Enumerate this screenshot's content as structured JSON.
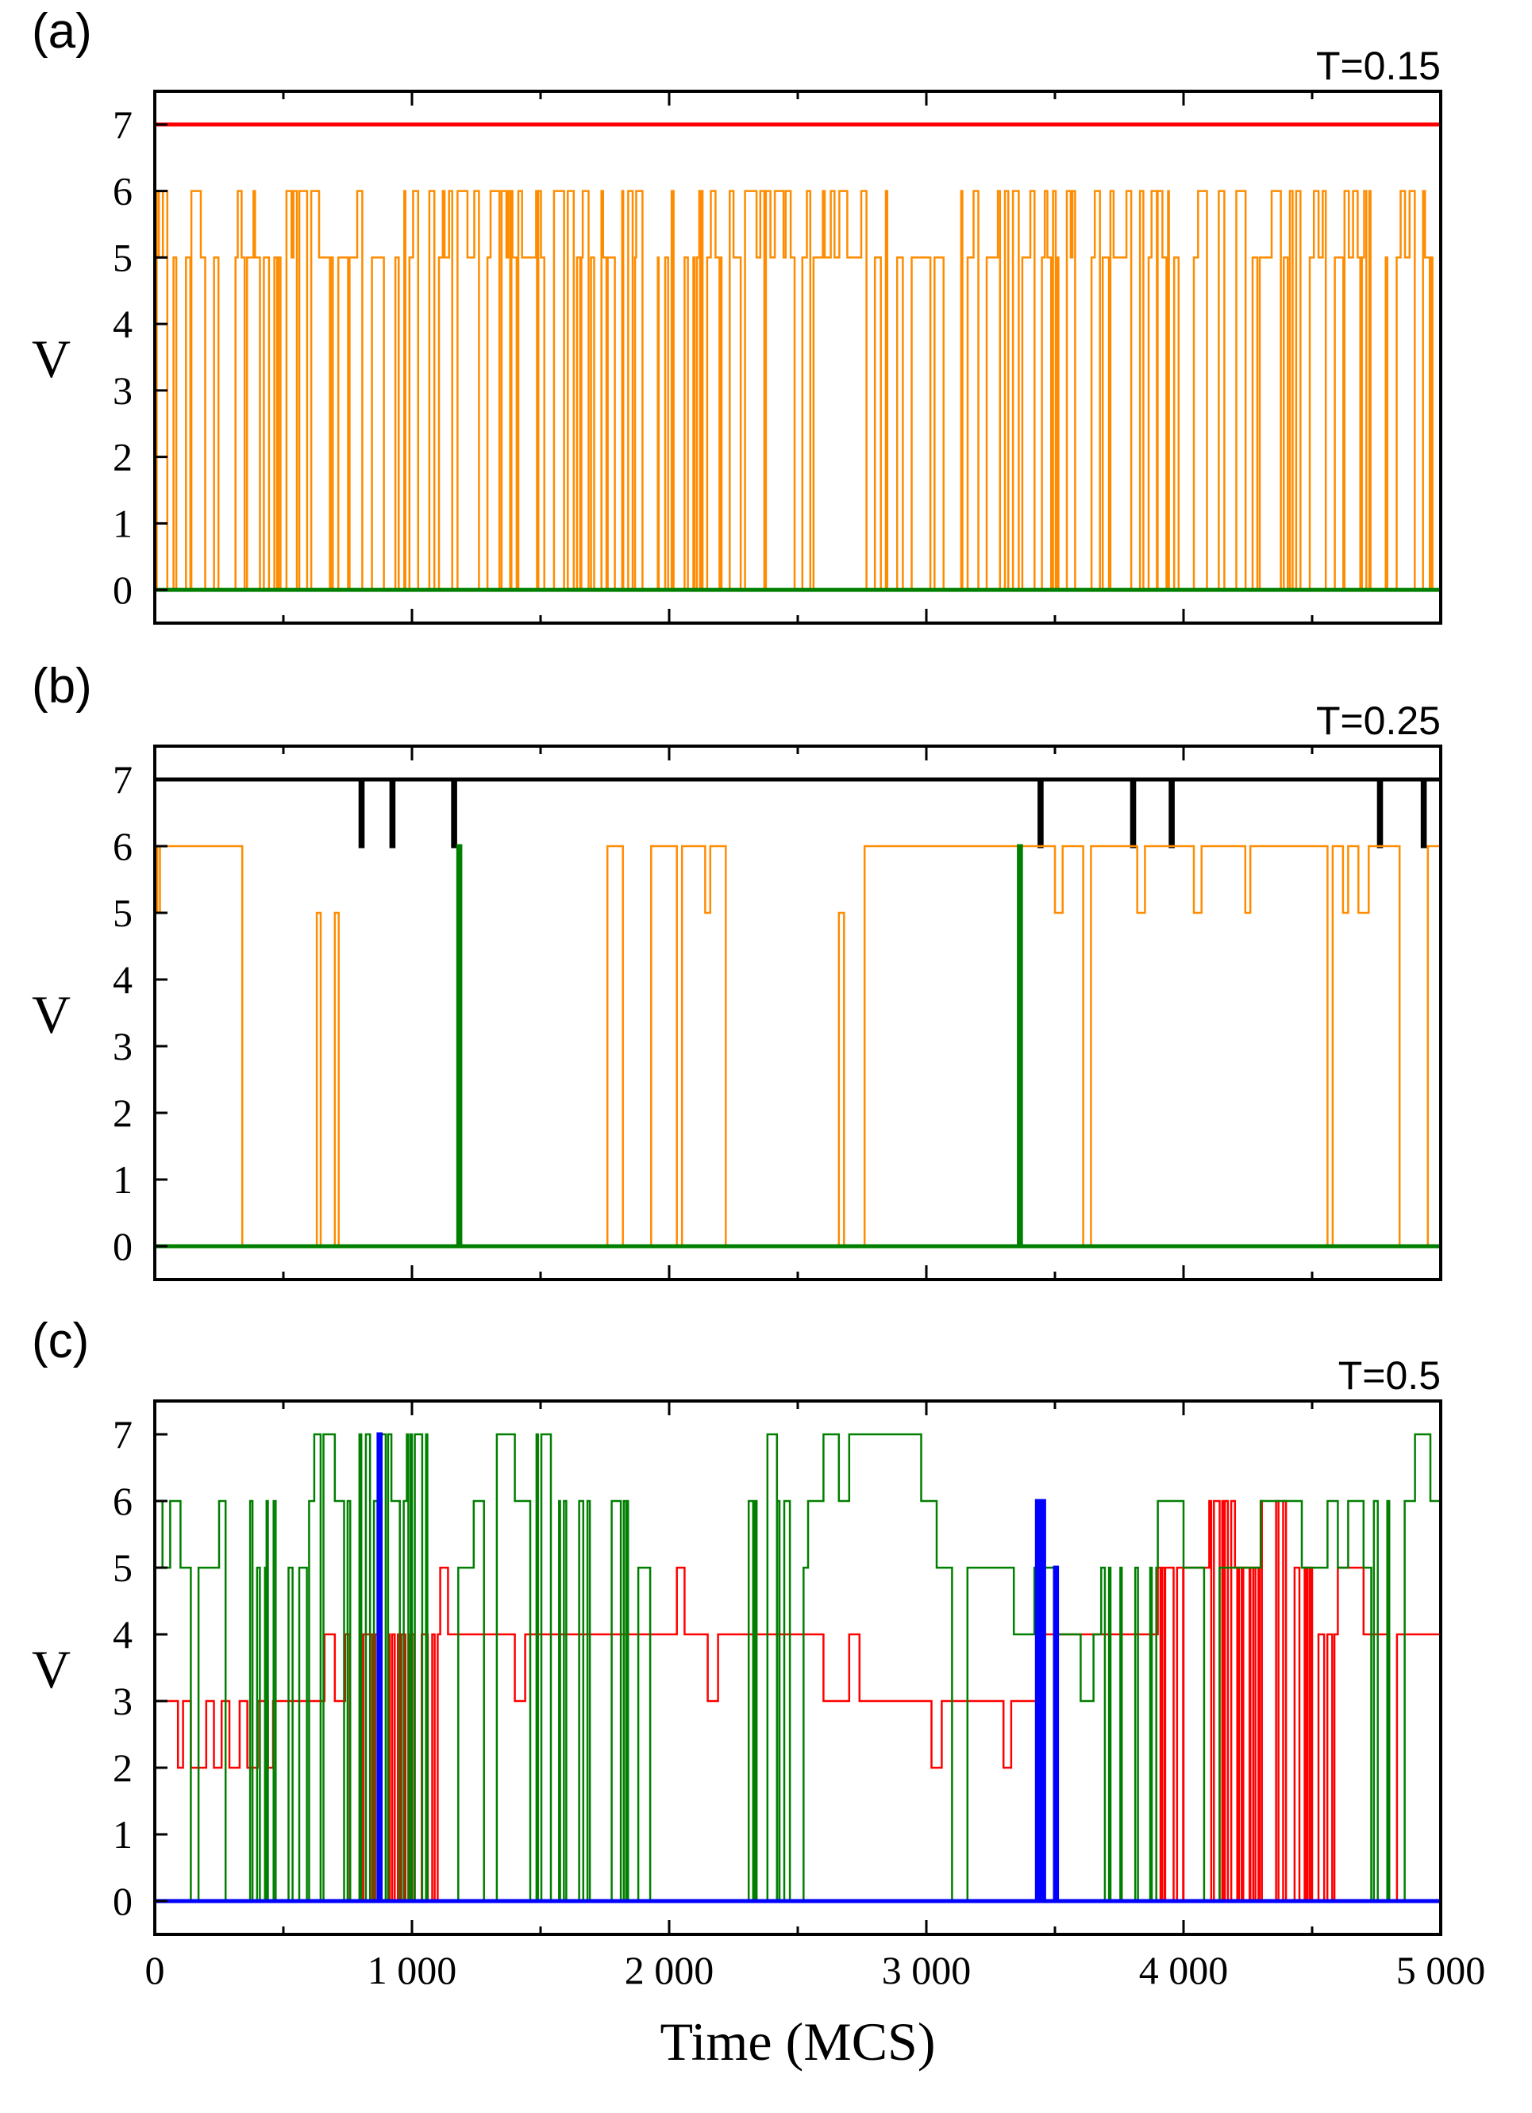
{
  "chart_data": [
    {
      "type": "line",
      "panel_label": "(a)",
      "annotation": "T=0.15",
      "ylabel": "V",
      "xlabel": "",
      "xlim": [
        0,
        5000
      ],
      "ylim": [
        -0.5,
        7.5
      ],
      "yticks": [
        "0",
        "1",
        "2",
        "3",
        "4",
        "5",
        "6",
        "7"
      ],
      "xticks": [
        0,
        1000,
        2000,
        3000,
        4000,
        5000
      ],
      "xtick_labels": [],
      "series": [
        {
          "name": "red",
          "color": "#ff0000",
          "mode": "constant",
          "level": 7
        },
        {
          "name": "orange",
          "color": "#ff8c00",
          "mode": "fast-switching",
          "levels": [
            0,
            5,
            6
          ]
        },
        {
          "name": "green",
          "color": "#007f00",
          "mode": "constant",
          "level": 0
        }
      ]
    },
    {
      "type": "line",
      "panel_label": "(b)",
      "annotation": "T=0.25",
      "ylabel": "V",
      "xlabel": "",
      "xlim": [
        0,
        5000
      ],
      "ylim": [
        -0.5,
        7.5
      ],
      "yticks": [
        "0",
        "1",
        "2",
        "3",
        "4",
        "5",
        "6",
        "7"
      ],
      "xticks": [
        0,
        1000,
        2000,
        3000,
        4000,
        5000
      ],
      "xtick_labels": [],
      "series": [
        {
          "name": "black",
          "color": "#000000",
          "base": 7,
          "dips": [
            [
              800,
              6
            ],
            [
              920,
              6
            ],
            [
              1160,
              6
            ],
            [
              3440,
              6
            ],
            [
              3800,
              6
            ],
            [
              3950,
              6
            ],
            [
              4760,
              6
            ],
            [
              4930,
              6
            ]
          ]
        },
        {
          "name": "orange",
          "color": "#ff8c00",
          "steps": [
            [
              0,
              6
            ],
            [
              10,
              5
            ],
            [
              20,
              6
            ],
            [
              340,
              0
            ],
            [
              630,
              5
            ],
            [
              645,
              0
            ],
            [
              700,
              5
            ],
            [
              715,
              0
            ],
            [
              1760,
              6
            ],
            [
              1820,
              0
            ],
            [
              1930,
              6
            ],
            [
              2030,
              0
            ],
            [
              2050,
              6
            ],
            [
              2140,
              5
            ],
            [
              2160,
              6
            ],
            [
              2220,
              0
            ],
            [
              2660,
              5
            ],
            [
              2680,
              0
            ],
            [
              2760,
              6
            ],
            [
              3500,
              5
            ],
            [
              3530,
              6
            ],
            [
              3610,
              0
            ],
            [
              3640,
              6
            ],
            [
              3820,
              5
            ],
            [
              3850,
              6
            ],
            [
              4040,
              5
            ],
            [
              4070,
              6
            ],
            [
              4240,
              5
            ],
            [
              4260,
              6
            ],
            [
              4560,
              0
            ],
            [
              4580,
              6
            ],
            [
              4620,
              5
            ],
            [
              4640,
              6
            ],
            [
              4680,
              5
            ],
            [
              4720,
              6
            ],
            [
              4840,
              0
            ],
            [
              4950,
              6
            ],
            [
              5000,
              6
            ]
          ]
        },
        {
          "name": "green",
          "color": "#007f00",
          "base": 0,
          "spikes": [
            [
              1180,
              6
            ],
            [
              3360,
              6
            ]
          ]
        }
      ]
    },
    {
      "type": "line",
      "panel_label": "(c)",
      "annotation": "T=0.5",
      "ylabel": "V",
      "xlabel": "Time (MCS)",
      "xlim": [
        0,
        5000
      ],
      "ylim": [
        -0.5,
        7.5
      ],
      "yticks": [
        "0",
        "1",
        "2",
        "3",
        "4",
        "5",
        "6",
        "7"
      ],
      "xticks": [
        0,
        1000,
        2000,
        3000,
        4000,
        5000
      ],
      "xtick_labels": [
        "0",
        "1 000",
        "2 000",
        "3 000",
        "4 000",
        "5 000"
      ],
      "series": [
        {
          "name": "red",
          "color": "#ff0000",
          "steps": [
            [
              0,
              3
            ],
            [
              90,
              2
            ],
            [
              110,
              3
            ],
            [
              140,
              2
            ],
            [
              200,
              3
            ],
            [
              230,
              2
            ],
            [
              260,
              3
            ],
            [
              290,
              2
            ],
            [
              330,
              3
            ],
            [
              360,
              2
            ],
            [
              400,
              3
            ],
            [
              440,
              2
            ],
            [
              460,
              3
            ],
            [
              600,
              3
            ],
            [
              660,
              4
            ],
            [
              700,
              3
            ],
            [
              740,
              4
            ],
            [
              1100,
              4
            ],
            [
              1110,
              5
            ],
            [
              1140,
              4
            ],
            [
              1400,
              3
            ],
            [
              1440,
              4
            ],
            [
              1550,
              4
            ],
            [
              2030,
              5
            ],
            [
              2060,
              4
            ],
            [
              2150,
              3
            ],
            [
              2190,
              4
            ],
            [
              2300,
              4
            ],
            [
              2600,
              3
            ],
            [
              2700,
              4
            ],
            [
              2740,
              3
            ],
            [
              3020,
              2
            ],
            [
              3060,
              3
            ],
            [
              3300,
              2
            ],
            [
              3330,
              3
            ],
            [
              3450,
              4
            ],
            [
              3700,
              4
            ],
            [
              3900,
              5
            ],
            [
              4000,
              5
            ],
            [
              4100,
              6
            ],
            [
              4200,
              5
            ],
            [
              4300,
              6
            ],
            [
              4400,
              5
            ],
            [
              4500,
              4
            ],
            [
              4600,
              5
            ],
            [
              4700,
              4
            ],
            [
              4800,
              0
            ],
            [
              4830,
              4
            ],
            [
              5000,
              4
            ]
          ],
          "fast_windows": [
            [
              0,
              0
            ],
            [
              780,
              830
            ],
            [
              3900,
              4000
            ],
            [
              4150,
              4600
            ]
          ]
        },
        {
          "name": "green",
          "color": "#007f00",
          "steps": [
            [
              0,
              6
            ],
            [
              30,
              5
            ],
            [
              60,
              6
            ],
            [
              100,
              5
            ],
            [
              140,
              0
            ],
            [
              170,
              5
            ],
            [
              250,
              6
            ],
            [
              290,
              0
            ],
            [
              330,
              6
            ],
            [
              380,
              5
            ],
            [
              430,
              6
            ],
            [
              470,
              0
            ],
            [
              520,
              5
            ],
            [
              600,
              6
            ],
            [
              620,
              7
            ],
            [
              700,
              6
            ],
            [
              760,
              7
            ],
            [
              840,
              6
            ],
            [
              880,
              7
            ],
            [
              920,
              6
            ],
            [
              980,
              7
            ],
            [
              1060,
              6
            ],
            [
              1120,
              0
            ],
            [
              1180,
              5
            ],
            [
              1240,
              6
            ],
            [
              1280,
              0
            ],
            [
              1330,
              7
            ],
            [
              1400,
              6
            ],
            [
              1460,
              7
            ],
            [
              1540,
              6
            ],
            [
              1600,
              0
            ],
            [
              1650,
              6
            ],
            [
              1700,
              0
            ],
            [
              1760,
              6
            ],
            [
              1840,
              0
            ],
            [
              1880,
              5
            ],
            [
              1960,
              0
            ],
            [
              2200,
              0
            ],
            [
              2260,
              6
            ],
            [
              2340,
              7
            ],
            [
              2420,
              6
            ],
            [
              2480,
              5
            ],
            [
              2540,
              6
            ],
            [
              2600,
              7
            ],
            [
              2660,
              6
            ],
            [
              2700,
              7
            ],
            [
              2980,
              6
            ],
            [
              3040,
              5
            ],
            [
              3100,
              0
            ],
            [
              3160,
              5
            ],
            [
              3340,
              4
            ],
            [
              3420,
              5
            ],
            [
              3500,
              4
            ],
            [
              3600,
              3
            ],
            [
              3650,
              4
            ],
            [
              3680,
              5
            ],
            [
              3760,
              4
            ],
            [
              3800,
              5
            ],
            [
              3900,
              6
            ],
            [
              4000,
              5
            ],
            [
              4080,
              0
            ],
            [
              4140,
              5
            ],
            [
              4300,
              6
            ],
            [
              4460,
              5
            ],
            [
              4560,
              6
            ],
            [
              4600,
              5
            ],
            [
              4640,
              6
            ],
            [
              4700,
              5
            ],
            [
              4740,
              6
            ],
            [
              4800,
              0
            ],
            [
              4860,
              6
            ],
            [
              4900,
              7
            ],
            [
              4960,
              6
            ],
            [
              5000,
              6
            ]
          ],
          "fast_windows": [
            [
              280,
              560
            ],
            [
              600,
              1100
            ],
            [
              1500,
              1900
            ],
            [
              2300,
              2500
            ],
            [
              3700,
              3900
            ],
            [
              4700,
              4850
            ]
          ]
        },
        {
          "name": "blue",
          "color": "#0000ff",
          "base": 0,
          "spikes": [
            [
              870,
              7
            ],
            [
              3430,
              6
            ],
            [
              3450,
              6
            ],
            [
              3500,
              5
            ]
          ]
        }
      ]
    }
  ]
}
